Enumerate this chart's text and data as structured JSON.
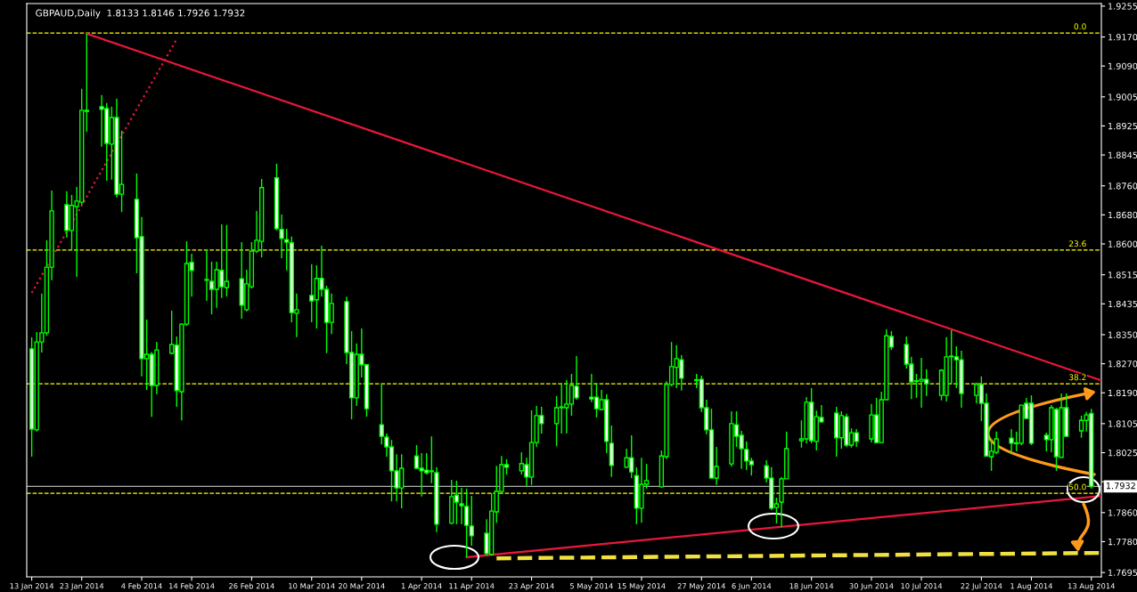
{
  "chart_data": {
    "type": "candlestick",
    "title": "GBPAUD,Daily  1.8133 1.8146 1.7926 1.7932",
    "color": "#00ff00",
    "grid": false,
    "x": [
      "2014-01-13",
      "2014-01-14",
      "2014-01-15",
      "2014-01-16",
      "2014-01-17",
      "2014-01-20",
      "2014-01-21",
      "2014-01-22",
      "2014-01-23",
      "2014-01-24",
      "2014-01-27",
      "2014-01-28",
      "2014-01-29",
      "2014-01-30",
      "2014-01-31",
      "2014-02-03",
      "2014-02-04",
      "2014-02-05",
      "2014-02-06",
      "2014-02-07",
      "2014-02-10",
      "2014-02-11",
      "2014-02-12",
      "2014-02-13",
      "2014-02-14",
      "2014-02-17",
      "2014-02-18",
      "2014-02-19",
      "2014-02-20",
      "2014-02-21",
      "2014-02-24",
      "2014-02-25",
      "2014-02-26",
      "2014-02-27",
      "2014-02-28",
      "2014-03-03",
      "2014-03-04",
      "2014-03-05",
      "2014-03-06",
      "2014-03-07",
      "2014-03-10",
      "2014-03-11",
      "2014-03-12",
      "2014-03-13",
      "2014-03-14",
      "2014-03-17",
      "2014-03-18",
      "2014-03-19",
      "2014-03-20",
      "2014-03-21",
      "2014-03-24",
      "2014-03-25",
      "2014-03-26",
      "2014-03-27",
      "2014-03-28",
      "2014-03-31",
      "2014-04-01",
      "2014-04-02",
      "2014-04-03",
      "2014-04-04",
      "2014-04-07",
      "2014-04-08",
      "2014-04-09",
      "2014-04-10",
      "2014-04-11",
      "2014-04-14",
      "2014-04-15",
      "2014-04-16",
      "2014-04-17",
      "2014-04-18",
      "2014-04-21",
      "2014-04-22",
      "2014-04-23",
      "2014-04-24",
      "2014-04-25",
      "2014-04-28",
      "2014-04-29",
      "2014-04-30",
      "2014-05-01",
      "2014-05-02",
      "2014-05-05",
      "2014-05-06",
      "2014-05-07",
      "2014-05-08",
      "2014-05-09",
      "2014-05-12",
      "2014-05-13",
      "2014-05-14",
      "2014-05-15",
      "2014-05-16",
      "2014-05-19",
      "2014-05-20",
      "2014-05-21",
      "2014-05-22",
      "2014-05-23",
      "2014-05-26",
      "2014-05-27",
      "2014-05-28",
      "2014-05-29",
      "2014-05-30",
      "2014-06-02",
      "2014-06-03",
      "2014-06-04",
      "2014-06-05",
      "2014-06-06",
      "2014-06-09",
      "2014-06-10",
      "2014-06-11",
      "2014-06-12",
      "2014-06-13",
      "2014-06-16",
      "2014-06-17",
      "2014-06-18",
      "2014-06-19",
      "2014-06-20",
      "2014-06-23",
      "2014-06-24",
      "2014-06-25",
      "2014-06-26",
      "2014-06-27",
      "2014-06-30",
      "2014-07-01",
      "2014-07-02",
      "2014-07-03",
      "2014-07-04",
      "2014-07-07",
      "2014-07-08",
      "2014-07-09",
      "2014-07-10",
      "2014-07-11",
      "2014-07-14",
      "2014-07-15",
      "2014-07-16",
      "2014-07-17",
      "2014-07-18",
      "2014-07-21",
      "2014-07-22",
      "2014-07-23",
      "2014-07-24",
      "2014-07-25",
      "2014-07-28",
      "2014-07-29",
      "2014-07-30",
      "2014-07-31",
      "2014-08-01",
      "2014-08-04",
      "2014-08-05",
      "2014-08-06",
      "2014-08-07",
      "2014-08-08",
      "2014-08-11",
      "2014-08-12",
      "2014-08-13"
    ],
    "ohlc": [
      [
        1.8311,
        1.8343,
        1.8014,
        1.809
      ],
      [
        1.8088,
        1.8357,
        1.8083,
        1.833
      ],
      [
        1.833,
        1.8463,
        1.8301,
        1.8355
      ],
      [
        1.8355,
        1.861,
        1.8347,
        1.8536
      ],
      [
        1.8536,
        1.8747,
        1.85,
        1.8691
      ],
      [
        1.8708,
        1.8745,
        1.8617,
        1.8637
      ],
      [
        1.8637,
        1.8735,
        1.8583,
        1.8706
      ],
      [
        1.8703,
        1.8757,
        1.8509,
        1.8718
      ],
      [
        1.8715,
        1.9027,
        1.8708,
        1.8968
      ],
      [
        1.8968,
        1.9179,
        1.8909,
        1.8965
      ],
      [
        1.8978,
        1.901,
        1.8868,
        1.8971
      ],
      [
        1.8973,
        1.8988,
        1.8774,
        1.8877
      ],
      [
        1.8875,
        1.8978,
        1.8777,
        1.8948
      ],
      [
        1.8948,
        1.9,
        1.8728,
        1.8737
      ],
      [
        1.8737,
        1.8912,
        1.8688,
        1.8764
      ],
      [
        1.8723,
        1.8794,
        1.8519,
        1.8617
      ],
      [
        1.862,
        1.8674,
        1.8235,
        1.8284
      ],
      [
        1.8284,
        1.8392,
        1.8198,
        1.8296
      ],
      [
        1.8296,
        1.8303,
        1.8124,
        1.821
      ],
      [
        1.821,
        1.833,
        1.8186,
        1.8308
      ],
      [
        1.8299,
        1.8416,
        1.8296,
        1.8323
      ],
      [
        1.8321,
        1.8345,
        1.8151,
        1.8196
      ],
      [
        1.8193,
        1.8381,
        1.8114,
        1.8379
      ],
      [
        1.8379,
        1.8607,
        1.8374,
        1.8546
      ],
      [
        1.8549,
        1.8573,
        1.8455,
        1.8527
      ],
      [
        1.85,
        1.8585,
        1.8443,
        1.8502
      ],
      [
        1.8497,
        1.8551,
        1.8406,
        1.8475
      ],
      [
        1.8475,
        1.8551,
        1.8424,
        1.8529
      ],
      [
        1.8527,
        1.8654,
        1.8451,
        1.8482
      ],
      [
        1.848,
        1.8652,
        1.8455,
        1.8497
      ],
      [
        1.8504,
        1.8605,
        1.8394,
        1.8431
      ],
      [
        1.8419,
        1.8529,
        1.8414,
        1.849
      ],
      [
        1.8482,
        1.8605,
        1.8477,
        1.858
      ],
      [
        1.858,
        1.8691,
        1.8575,
        1.861
      ],
      [
        1.8607,
        1.8779,
        1.8563,
        1.8755
      ],
      [
        1.8782,
        1.8821,
        1.8637,
        1.8642
      ],
      [
        1.864,
        1.8681,
        1.8561,
        1.8615
      ],
      [
        1.8612,
        1.8642,
        1.8527,
        1.8605
      ],
      [
        1.8603,
        1.862,
        1.8384,
        1.8411
      ],
      [
        1.8409,
        1.8463,
        1.8343,
        1.8419
      ],
      [
        1.8458,
        1.8544,
        1.8384,
        1.8443
      ],
      [
        1.8446,
        1.8541,
        1.8367,
        1.8505
      ],
      [
        1.8505,
        1.8595,
        1.8455,
        1.8475
      ],
      [
        1.8475,
        1.8485,
        1.8299,
        1.8384
      ],
      [
        1.8384,
        1.8463,
        1.8352,
        1.8436
      ],
      [
        1.8441,
        1.8455,
        1.8269,
        1.8301
      ],
      [
        1.8301,
        1.836,
        1.8117,
        1.8176
      ],
      [
        1.8176,
        1.8326,
        1.8154,
        1.8296
      ],
      [
        1.8296,
        1.8367,
        1.8232,
        1.8267
      ],
      [
        1.8267,
        1.8269,
        1.8124,
        1.8146
      ],
      [
        1.8102,
        1.8215,
        1.8048,
        1.807
      ],
      [
        1.8068,
        1.8078,
        1.8014,
        1.8041
      ],
      [
        1.8041,
        1.806,
        1.7891,
        1.7975
      ],
      [
        1.7975,
        1.8021,
        1.7891,
        1.7928
      ],
      [
        1.7928,
        1.8021,
        1.7872,
        1.7982
      ],
      [
        1.8016,
        1.8046,
        1.798,
        1.7982
      ],
      [
        1.7982,
        1.8024,
        1.7904,
        1.7975
      ],
      [
        1.7977,
        1.8024,
        1.7965,
        1.797
      ],
      [
        1.7975,
        1.807,
        1.7941,
        1.7973
      ],
      [
        1.797,
        1.7985,
        1.7806,
        1.7828
      ],
      [
        1.7831,
        1.795,
        1.7828,
        1.7904
      ],
      [
        1.7908,
        1.7948,
        1.7828,
        1.7889
      ],
      [
        1.7884,
        1.7928,
        1.7828,
        1.7879
      ],
      [
        1.7877,
        1.7926,
        1.7737,
        1.7825
      ],
      [
        1.7823,
        1.7906,
        1.7769,
        1.7796
      ],
      [
        1.7803,
        1.7842,
        1.7742,
        1.7747
      ],
      [
        1.7745,
        1.7913,
        1.7742,
        1.7864
      ],
      [
        1.7862,
        1.7989,
        1.7832,
        1.7919
      ],
      [
        1.7918,
        1.8016,
        1.7911,
        1.7992
      ],
      [
        1.7992,
        1.8007,
        1.7965,
        1.7985
      ],
      [
        1.7975,
        1.8026,
        1.7965,
        1.7995
      ],
      [
        1.7992,
        1.8011,
        1.7931,
        1.7958
      ],
      [
        1.7958,
        1.8142,
        1.7936,
        1.8053
      ],
      [
        1.8053,
        1.8154,
        1.8041,
        1.8127
      ],
      [
        1.8127,
        1.8151,
        1.8078,
        1.8105
      ],
      [
        1.8105,
        1.8181,
        1.8043,
        1.8149
      ],
      [
        1.8149,
        1.8217,
        1.8078,
        1.8151
      ],
      [
        1.8149,
        1.8225,
        1.8078,
        1.8159
      ],
      [
        1.8159,
        1.8242,
        1.8127,
        1.821
      ],
      [
        1.8208,
        1.8291,
        1.8171,
        1.8176
      ],
      [
        1.8178,
        1.8242,
        1.8164,
        1.8173
      ],
      [
        1.8178,
        1.8217,
        1.8122,
        1.8146
      ],
      [
        1.8144,
        1.8198,
        1.8142,
        1.8171
      ],
      [
        1.8171,
        1.8186,
        1.8024,
        1.8056
      ],
      [
        1.8051,
        1.81,
        1.7958,
        1.799
      ],
      [
        1.7985,
        1.8036,
        1.7983,
        1.8011
      ],
      [
        1.8011,
        1.8073,
        1.7955,
        1.7972
      ],
      [
        1.7962,
        1.7985,
        1.7828,
        1.7872
      ],
      [
        1.7872,
        1.8011,
        1.7832,
        1.7938
      ],
      [
        1.7938,
        1.7994,
        1.7926,
        1.7948
      ],
      [
        1.7931,
        1.8031,
        1.7929,
        1.8016
      ],
      [
        1.8014,
        1.8222,
        1.8007,
        1.8213
      ],
      [
        1.8213,
        1.833,
        1.8208,
        1.8262
      ],
      [
        1.826,
        1.8321,
        1.8203,
        1.8284
      ],
      [
        1.8281,
        1.8294,
        1.8196,
        1.823
      ],
      [
        1.8226,
        1.8242,
        1.8203,
        1.8224
      ],
      [
        1.8227,
        1.8237,
        1.8137,
        1.8149
      ],
      [
        1.8149,
        1.8171,
        1.8075,
        1.8088
      ],
      [
        1.8088,
        1.8146,
        1.7955,
        1.7955
      ],
      [
        1.7955,
        1.8041,
        1.7936,
        1.7987
      ],
      [
        1.7994,
        1.8139,
        1.7987,
        1.8105
      ],
      [
        1.8102,
        1.8139,
        1.8041,
        1.807
      ],
      [
        1.8073,
        1.8085,
        1.798,
        1.8036
      ],
      [
        1.8034,
        1.8056,
        1.7977,
        1.8002
      ],
      [
        1.8002,
        1.8011,
        1.7962,
        1.7992
      ],
      [
        1.7989,
        1.8004,
        1.7943,
        1.7955
      ],
      [
        1.7955,
        1.7985,
        1.7867,
        1.7872
      ],
      [
        1.7874,
        1.7901,
        1.783,
        1.7884
      ],
      [
        1.7889,
        1.7958,
        1.782,
        1.7953
      ],
      [
        1.7953,
        1.8083,
        1.7953,
        1.8036
      ],
      [
        1.8058,
        1.8114,
        1.8039,
        1.8063
      ],
      [
        1.8063,
        1.8178,
        1.8051,
        1.8164
      ],
      [
        1.8164,
        1.8203,
        1.8051,
        1.8058
      ],
      [
        1.8056,
        1.8141,
        1.8031,
        1.8124
      ],
      [
        1.8122,
        1.8156,
        1.8107,
        1.811
      ],
      [
        1.8134,
        1.8151,
        1.8014,
        1.8066
      ],
      [
        1.8066,
        1.8139,
        1.8036,
        1.8127
      ],
      [
        1.8124,
        1.8132,
        1.8041,
        1.8046
      ],
      [
        1.8046,
        1.8092,
        1.8039,
        1.808
      ],
      [
        1.808,
        1.809,
        1.8041,
        1.8056
      ],
      [
        1.8063,
        1.8159,
        1.8053,
        1.8129
      ],
      [
        1.8129,
        1.8176,
        1.8051,
        1.8053
      ],
      [
        1.8053,
        1.8193,
        1.8051,
        1.8171
      ],
      [
        1.8171,
        1.8365,
        1.8171,
        1.8347
      ],
      [
        1.8345,
        1.836,
        1.8308,
        1.8316
      ],
      [
        1.8323,
        1.8345,
        1.8257,
        1.8269
      ],
      [
        1.8269,
        1.8289,
        1.8173,
        1.822
      ],
      [
        1.8223,
        1.8242,
        1.8176,
        1.8221
      ],
      [
        1.8222,
        1.8286,
        1.8149,
        1.8227
      ],
      [
        1.8227,
        1.8255,
        1.8181,
        1.8215
      ],
      [
        1.8183,
        1.8255,
        1.8169,
        1.8252
      ],
      [
        1.8183,
        1.8343,
        1.8166,
        1.8289
      ],
      [
        1.8289,
        1.8362,
        1.8213,
        1.8291
      ],
      [
        1.8289,
        1.8318,
        1.8203,
        1.8281
      ],
      [
        1.8281,
        1.8306,
        1.8149,
        1.8188
      ],
      [
        1.8183,
        1.8218,
        1.8161,
        1.8213
      ],
      [
        1.8213,
        1.8235,
        1.8112,
        1.8161
      ],
      [
        1.8161,
        1.8188,
        1.8016,
        1.8016
      ],
      [
        1.8014,
        1.8063,
        1.7975,
        1.8029
      ],
      [
        1.8026,
        1.8083,
        1.8021,
        1.8063
      ],
      [
        1.8065,
        1.809,
        1.8021,
        1.8051
      ],
      [
        1.8052,
        1.8083,
        1.8029,
        1.805
      ],
      [
        1.8051,
        1.8156,
        1.8046,
        1.8156
      ],
      [
        1.8161,
        1.8176,
        1.8119,
        1.8119
      ],
      [
        1.8161,
        1.8183,
        1.8046,
        1.8051
      ],
      [
        1.8073,
        1.808,
        1.8029,
        1.8061
      ],
      [
        1.8061,
        1.8156,
        1.8026,
        1.8149
      ],
      [
        1.8144,
        1.8149,
        1.7975,
        1.8014
      ],
      [
        1.8012,
        1.8188,
        1.8012,
        1.8149
      ],
      [
        1.8149,
        1.8188,
        1.807,
        1.807
      ],
      [
        1.8085,
        1.8127,
        1.8066,
        1.8114
      ],
      [
        1.8114,
        1.8137,
        1.8083,
        1.8129
      ],
      [
        1.8133,
        1.8146,
        1.7926,
        1.7932
      ]
    ],
    "series": [
      {
        "type": "line",
        "x": [
          "2014-01-24",
          "2014-08-15"
        ],
        "values": [
          1.9179,
          1.8224
        ],
        "color": "#e8173c",
        "line_style": "solid"
      },
      {
        "type": "line",
        "x": [
          "2014-04-10",
          "2014-08-15"
        ],
        "values": [
          1.7737,
          1.7906
        ],
        "color": "#e8173c",
        "line_style": "solid"
      },
      {
        "type": "line",
        "x": [
          "2014-01-13",
          "2014-02-11"
        ],
        "values": [
          1.8465,
          1.9164
        ],
        "color": "#e8173c",
        "line_style": "dotted"
      },
      {
        "type": "line",
        "x": [
          "2014-04-16",
          "2014-08-15"
        ],
        "values": [
          1.7734,
          1.7749
        ],
        "color": "#f0e040",
        "line_style": "dashed"
      }
    ],
    "ref_lines": [
      {
        "axis": "y",
        "value": 1.9181,
        "color": "#ffff00",
        "line_style": "dashed"
      },
      {
        "axis": "y",
        "value": 1.8583,
        "color": "#ffff00",
        "line_style": "dashed"
      },
      {
        "axis": "y",
        "value": 1.8215,
        "color": "#ffff00",
        "line_style": "dashed"
      },
      {
        "axis": "y",
        "value": 1.7913,
        "color": "#ffff00",
        "line_style": "dashed"
      },
      {
        "axis": "y",
        "value": 1.7932,
        "label": "1.7932",
        "color": "#b0b0b0",
        "line_style": "solid"
      }
    ],
    "annotations": [
      {
        "text": "0.0",
        "x": "2014-08-15",
        "y": 1.9181
      },
      {
        "text": "23.6",
        "x": "2014-08-15",
        "y": 1.8583
      },
      {
        "text": "38.2",
        "x": "2014-08-15",
        "y": 1.8215
      },
      {
        "text": "50.0",
        "x": "2014-08-15",
        "y": 1.7913
      }
    ],
    "xlim": [
      "2014-01-12",
      "2014-08-15"
    ],
    "xticks": [
      {
        "value": "2014-01-13",
        "label": "13 Jan 2014"
      },
      {
        "value": "2014-01-23",
        "label": "23 Jan 2014"
      },
      {
        "value": "2014-02-04",
        "label": "4 Feb 2014"
      },
      {
        "value": "2014-02-14",
        "label": "14 Feb 2014"
      },
      {
        "value": "2014-02-26",
        "label": "26 Feb 2014"
      },
      {
        "value": "2014-03-10",
        "label": "10 Mar 2014"
      },
      {
        "value": "2014-03-20",
        "label": "20 Mar 2014"
      },
      {
        "value": "2014-04-01",
        "label": "1 Apr 2014"
      },
      {
        "value": "2014-04-11",
        "label": "11 Apr 2014"
      },
      {
        "value": "2014-04-23",
        "label": "23 Apr 2014"
      },
      {
        "value": "2014-05-05",
        "label": "5 May 2014"
      },
      {
        "value": "2014-05-15",
        "label": "15 May 2014"
      },
      {
        "value": "2014-05-27",
        "label": "27 May 2014"
      },
      {
        "value": "2014-06-06",
        "label": "6 Jun 2014"
      },
      {
        "value": "2014-06-18",
        "label": "18 Jun 2014"
      },
      {
        "value": "2014-06-30",
        "label": "30 Jun 2014"
      },
      {
        "value": "2014-07-10",
        "label": "10 Jul 2014"
      },
      {
        "value": "2014-07-22",
        "label": "22 Jul 2014"
      },
      {
        "value": "2014-08-01",
        "label": "1 Aug 2014"
      },
      {
        "value": "2014-08-13",
        "label": "13 Aug 2014"
      }
    ],
    "ylim": [
      1.7683,
      1.9262
    ],
    "yticks": [
      {
        "value": 1.9255,
        "label": "1.9255"
      },
      {
        "value": 1.917,
        "label": "1.9170"
      },
      {
        "value": 1.909,
        "label": "1.9090"
      },
      {
        "value": 1.9005,
        "label": "1.9005"
      },
      {
        "value": 1.8925,
        "label": "1.8925"
      },
      {
        "value": 1.8845,
        "label": "1.8845"
      },
      {
        "value": 1.876,
        "label": "1.8760"
      },
      {
        "value": 1.868,
        "label": "1.8680"
      },
      {
        "value": 1.86,
        "label": "1.8600"
      },
      {
        "value": 1.8515,
        "label": "1.8515"
      },
      {
        "value": 1.8435,
        "label": "1.8435"
      },
      {
        "value": 1.835,
        "label": "1.8350"
      },
      {
        "value": 1.827,
        "label": "1.8270"
      },
      {
        "value": 1.819,
        "label": "1.8190"
      },
      {
        "value": 1.8105,
        "label": "1.8105"
      },
      {
        "value": 1.8025,
        "label": "1.8025"
      },
      {
        "value": 1.7945,
        "label": null
      },
      {
        "value": 1.786,
        "label": "1.7860"
      },
      {
        "value": 1.778,
        "label": "1.7780"
      },
      {
        "value": 1.7695,
        "label": "1.7695"
      }
    ]
  }
}
